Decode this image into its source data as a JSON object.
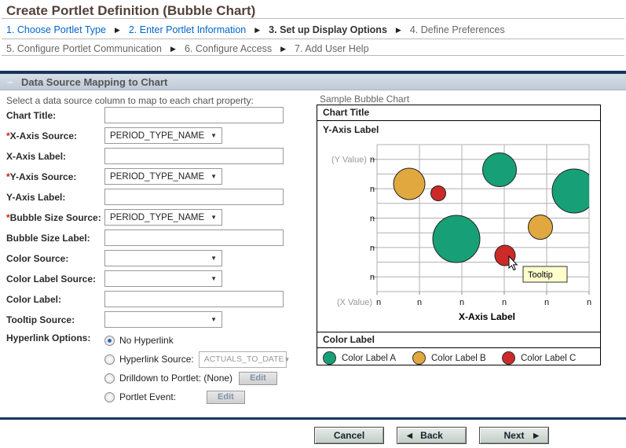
{
  "page": {
    "title": "Create Portlet Definition (Bubble Chart)"
  },
  "icons": {
    "step_arrow": "▶",
    "dropdown_arrow": "▼",
    "back_arrow": "◀",
    "next_arrow": "▶",
    "collapse": "−"
  },
  "wizard": {
    "row1": [
      {
        "label": "1. Choose Portlet Type",
        "state": "link"
      },
      {
        "label": "2. Enter Portlet Information",
        "state": "link"
      },
      {
        "label": "3. Set up Display Options",
        "state": "current"
      },
      {
        "label": "4. Define Preferences",
        "state": "future"
      }
    ],
    "row2": [
      {
        "label": "5. Configure Portlet Communication",
        "state": "future"
      },
      {
        "label": "6. Configure Access",
        "state": "future"
      },
      {
        "label": "7. Add User Help",
        "state": "future"
      }
    ]
  },
  "section": {
    "title": "Data Source Mapping to Chart",
    "instruction": "Select a data source column to map to each chart property:"
  },
  "form": {
    "fields": [
      {
        "label": "Chart Title:",
        "req": "",
        "type": "text",
        "value": ""
      },
      {
        "label": "X-Axis Source:",
        "req": "*",
        "type": "select",
        "value": "PERIOD_TYPE_NAME"
      },
      {
        "label": "X-Axis Label:",
        "req": "",
        "type": "text",
        "value": ""
      },
      {
        "label": "Y-Axis Source:",
        "req": "*",
        "type": "select",
        "value": "PERIOD_TYPE_NAME"
      },
      {
        "label": "Y-Axis Label:",
        "req": "",
        "type": "text",
        "value": ""
      },
      {
        "label": "Bubble Size Source:",
        "req": "*",
        "type": "select",
        "value": "PERIOD_TYPE_NAME"
      },
      {
        "label": "Bubble Size Label:",
        "req": "",
        "type": "text",
        "value": ""
      },
      {
        "label": "Color Source:",
        "req": "",
        "type": "select",
        "value": ""
      },
      {
        "label": "Color Label Source:",
        "req": "",
        "type": "select",
        "value": ""
      },
      {
        "label": "Color Label:",
        "req": "",
        "type": "text",
        "value": ""
      },
      {
        "label": "Tooltip Source:",
        "req": "",
        "type": "select",
        "value": ""
      }
    ],
    "hyperlink": {
      "label": "Hyperlink Options:",
      "options": [
        {
          "label": "No Hyperlink",
          "selected": true
        },
        {
          "label": "Hyperlink Source:",
          "selected": false,
          "value": "ACTUALS_TO_DATE",
          "disabled": true
        },
        {
          "label": "Drilldown to Portlet: (None)",
          "selected": false,
          "button": "Edit"
        },
        {
          "label": "Portlet Event:",
          "selected": false,
          "button": "Edit"
        }
      ]
    }
  },
  "sample_chart": {
    "caption": "Sample Bubble Chart",
    "chart_title": "Chart Title",
    "y_axis_label": "Y-Axis Label",
    "x_axis_label": "X-Axis Label",
    "y_value_prefix": "(Y Value)",
    "x_value_prefix": "(X Value)",
    "tick": "n",
    "tooltip": "Tooltip",
    "legend_title": "Color Label",
    "legend": [
      {
        "label": "Color Label A",
        "color": "#17a077"
      },
      {
        "label": "Color Label B",
        "color": "#e0a83f"
      },
      {
        "label": "Color Label C",
        "color": "#cc2929"
      }
    ]
  },
  "chart_data": {
    "type": "scatter",
    "subtype": "bubble",
    "title": "Chart Title",
    "xlabel": "X-Axis Label",
    "ylabel": "Y-Axis Label",
    "x_ticks": [
      "n",
      "n",
      "n",
      "n",
      "n",
      "n"
    ],
    "y_ticks": [
      "n",
      "n",
      "n",
      "n",
      "n"
    ],
    "grid": true,
    "legend_position": "bottom",
    "bubbles": [
      {
        "x": 117,
        "y": 61,
        "r": 20,
        "series": "Color Label B",
        "color": "#e0a83f"
      },
      {
        "x": 154,
        "y": 73,
        "r": 9.5,
        "series": "Color Label C",
        "color": "#cc2929"
      },
      {
        "x": 232,
        "y": 43,
        "r": 21.5,
        "series": "Color Label A",
        "color": "#17a077"
      },
      {
        "x": 327,
        "y": 70,
        "r": 28,
        "series": "Color Label A",
        "color": "#17a077"
      },
      {
        "x": 177,
        "y": 131,
        "r": 30,
        "series": "Color Label A",
        "color": "#17a077"
      },
      {
        "x": 284,
        "y": 116,
        "r": 15.5,
        "series": "Color Label B",
        "color": "#e0a83f"
      },
      {
        "x": 239,
        "y": 152,
        "r": 13,
        "series": "Color Label C",
        "color": "#cc2929"
      }
    ]
  },
  "footer": {
    "cancel": "Cancel",
    "back": "Back",
    "next": "Next"
  }
}
